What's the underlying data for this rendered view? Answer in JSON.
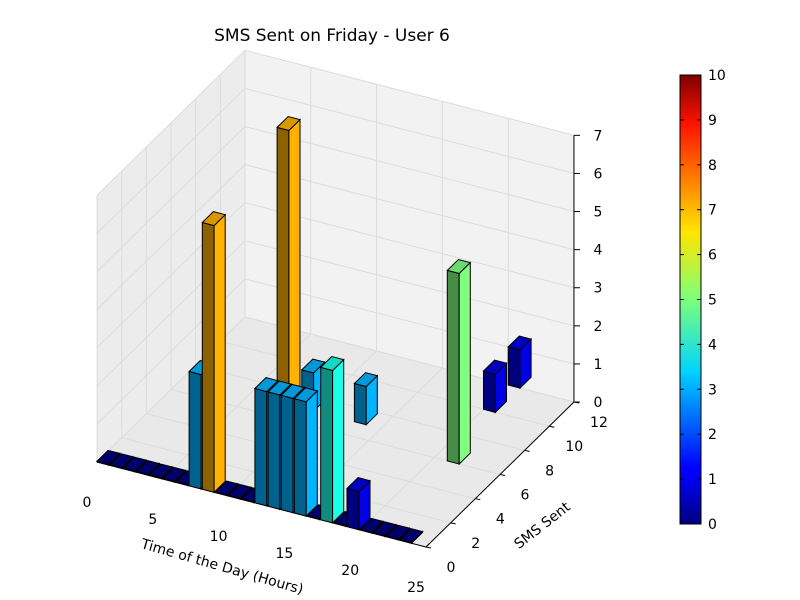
{
  "chart_data": {
    "type": "bar3d",
    "title": "SMS Sent on Friday - User 6",
    "xlabel": "Time of the Day (Hours)",
    "ylabel": "SMS Sent",
    "xlim": [
      0,
      25
    ],
    "ylim": [
      0,
      12
    ],
    "zlim": [
      0,
      7
    ],
    "xticks": [
      "0",
      "5",
      "10",
      "15",
      "20",
      "25"
    ],
    "yticks": [
      "0",
      "2",
      "4",
      "6",
      "8",
      "10",
      "12"
    ],
    "zticks": [
      "0",
      "1",
      "2",
      "3",
      "4",
      "5",
      "6",
      "7"
    ],
    "grid": true,
    "colormap": "jet",
    "colorbar": {
      "min": 0,
      "max": 10,
      "ticks": [
        "0",
        "1",
        "2",
        "3",
        "4",
        "5",
        "6",
        "7",
        "8",
        "9",
        "10"
      ]
    },
    "bars": [
      {
        "x": 0,
        "y": 0,
        "z": 0,
        "c": 0
      },
      {
        "x": 1,
        "y": 0,
        "z": 0,
        "c": 0
      },
      {
        "x": 2,
        "y": 0,
        "z": 0,
        "c": 0
      },
      {
        "x": 3,
        "y": 0,
        "z": 0,
        "c": 0
      },
      {
        "x": 4,
        "y": 0,
        "z": 0,
        "c": 0
      },
      {
        "x": 5,
        "y": 0,
        "z": 0,
        "c": 0
      },
      {
        "x": 6,
        "y": 0,
        "z": 0,
        "c": 0
      },
      {
        "x": 7,
        "y": 0,
        "z": 3,
        "c": 3
      },
      {
        "x": 8,
        "y": 0,
        "z": 7,
        "c": 7
      },
      {
        "x": 9,
        "y": 0,
        "z": 0,
        "c": 0
      },
      {
        "x": 10,
        "y": 0,
        "z": 0,
        "c": 0
      },
      {
        "x": 11,
        "y": 0,
        "z": 0,
        "c": 0
      },
      {
        "x": 12,
        "y": 0,
        "z": 3,
        "c": 3
      },
      {
        "x": 13,
        "y": 0,
        "z": 3,
        "c": 3
      },
      {
        "x": 14,
        "y": 0,
        "z": 3,
        "c": 3
      },
      {
        "x": 15,
        "y": 0,
        "z": 3,
        "c": 3
      },
      {
        "x": 16,
        "y": 0,
        "z": 0,
        "c": 0
      },
      {
        "x": 17,
        "y": 0,
        "z": 4,
        "c": 4
      },
      {
        "x": 18,
        "y": 0,
        "z": 0,
        "c": 0
      },
      {
        "x": 19,
        "y": 0,
        "z": 1,
        "c": 1
      },
      {
        "x": 20,
        "y": 0,
        "z": 0,
        "c": 0
      },
      {
        "x": 21,
        "y": 0,
        "z": 0,
        "c": 0
      },
      {
        "x": 22,
        "y": 0,
        "z": 0,
        "c": 0
      },
      {
        "x": 23,
        "y": 0,
        "z": 0,
        "c": 0
      },
      {
        "x": 9,
        "y": 5,
        "z": 8,
        "c": 7
      },
      {
        "x": 9,
        "y": 7,
        "z": 1,
        "c": 3
      },
      {
        "x": 13,
        "y": 7,
        "z": 1,
        "c": 3
      },
      {
        "x": 21,
        "y": 6,
        "z": 5,
        "c": 5
      },
      {
        "x": 20,
        "y": 10,
        "z": 1,
        "c": 1
      },
      {
        "x": 20,
        "y": 10,
        "z": 1,
        "c": 1
      },
      {
        "x": 20,
        "y": 12,
        "z": 1,
        "c": 1
      }
    ]
  }
}
